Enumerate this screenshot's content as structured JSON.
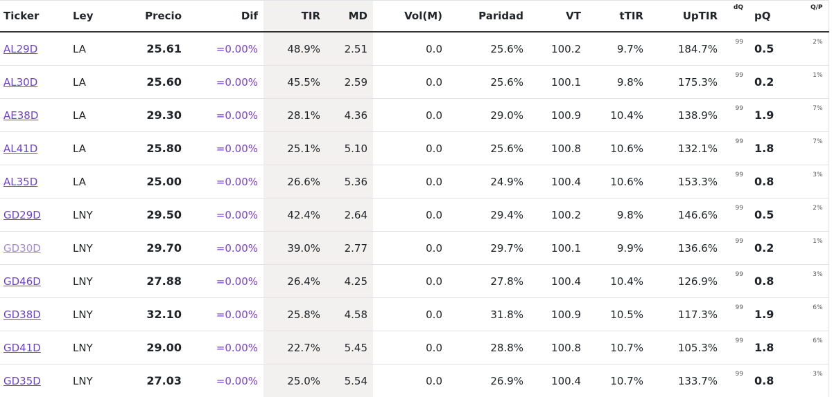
{
  "columns": [
    "Ticker",
    "Ley",
    "Precio",
    "Dif",
    "TIR",
    "MD",
    "Vol(M)",
    "Paridad",
    "VT",
    "tTIR",
    "UpTIR",
    "dQ",
    "pQ",
    "Q/P"
  ],
  "rows": [
    [
      "AL29D",
      "LA",
      "25.61",
      "=0.00%",
      "48.9%",
      "2.51",
      "0.0",
      "25.6%",
      "100.2",
      "9.7%",
      "184.7%",
      "99",
      "0.5",
      "2%"
    ],
    [
      "AL30D",
      "LA",
      "25.60",
      "=0.00%",
      "45.5%",
      "2.59",
      "0.0",
      "25.6%",
      "100.1",
      "9.8%",
      "175.3%",
      "99",
      "0.2",
      "1%"
    ],
    [
      "AE38D",
      "LA",
      "29.30",
      "=0.00%",
      "28.1%",
      "4.36",
      "0.0",
      "29.0%",
      "100.9",
      "10.4%",
      "138.9%",
      "99",
      "1.9",
      "7%"
    ],
    [
      "AL41D",
      "LA",
      "25.80",
      "=0.00%",
      "25.1%",
      "5.10",
      "0.0",
      "25.6%",
      "100.8",
      "10.6%",
      "132.1%",
      "99",
      "1.8",
      "7%"
    ],
    [
      "AL35D",
      "LA",
      "25.00",
      "=0.00%",
      "26.6%",
      "5.36",
      "0.0",
      "24.9%",
      "100.4",
      "10.6%",
      "153.3%",
      "99",
      "0.8",
      "3%"
    ],
    [
      "GD29D",
      "LNY",
      "29.50",
      "=0.00%",
      "42.4%",
      "2.64",
      "0.0",
      "29.4%",
      "100.2",
      "9.8%",
      "146.6%",
      "99",
      "0.5",
      "2%"
    ],
    [
      "GD30D",
      "LNY",
      "29.70",
      "=0.00%",
      "39.0%",
      "2.77",
      "0.0",
      "29.7%",
      "100.1",
      "9.9%",
      "136.6%",
      "99",
      "0.2",
      "1%"
    ],
    [
      "GD46D",
      "LNY",
      "27.88",
      "=0.00%",
      "26.4%",
      "4.25",
      "0.0",
      "27.8%",
      "100.4",
      "10.4%",
      "126.9%",
      "99",
      "0.8",
      "3%"
    ],
    [
      "GD38D",
      "LNY",
      "32.10",
      "=0.00%",
      "25.8%",
      "4.58",
      "0.0",
      "31.8%",
      "100.9",
      "10.5%",
      "117.3%",
      "99",
      "1.9",
      "6%"
    ],
    [
      "GD41D",
      "LNY",
      "29.00",
      "=0.00%",
      "22.7%",
      "5.45",
      "0.0",
      "28.8%",
      "100.8",
      "10.7%",
      "105.3%",
      "99",
      "1.8",
      "6%"
    ],
    [
      "GD35D",
      "LNY",
      "27.03",
      "=0.00%",
      "25.0%",
      "5.54",
      "0.0",
      "26.9%",
      "100.4",
      "10.7%",
      "133.7%",
      "99",
      "0.8",
      "3%"
    ]
  ],
  "visited_rows": [
    6
  ],
  "colors": {
    "link": "#6f42c1",
    "visited_link": "#a38bd0",
    "tir_md_background": "#f3f1f0"
  }
}
